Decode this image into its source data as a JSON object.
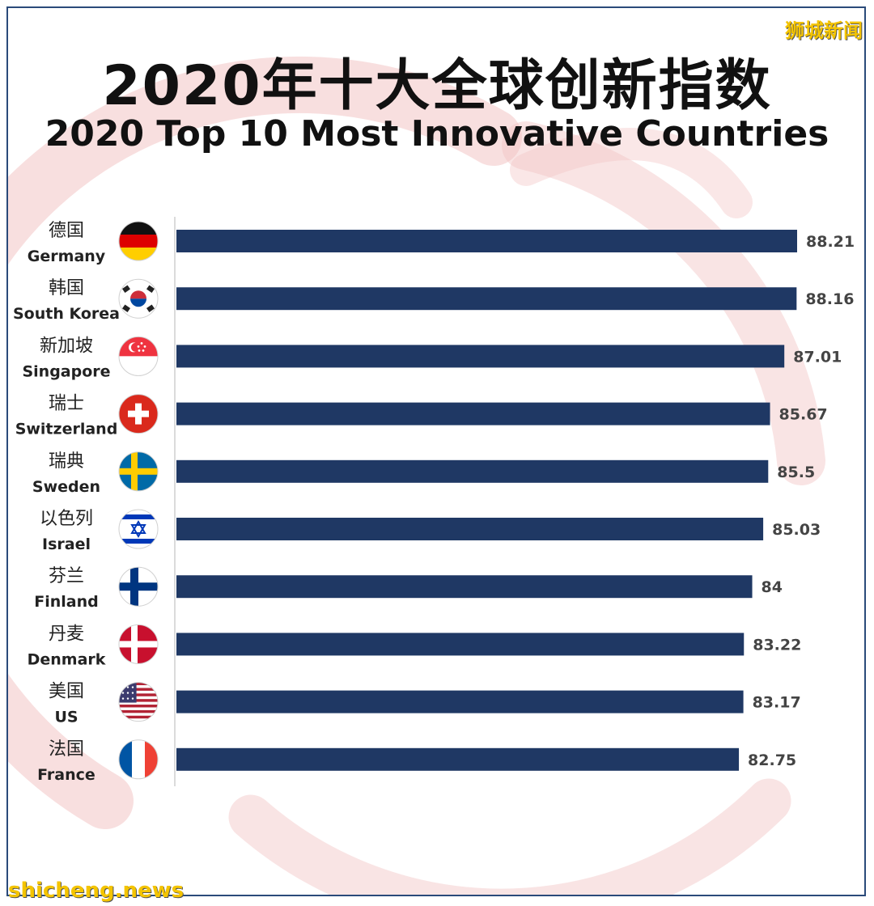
{
  "title_cn": "2020年十大全球创新指数",
  "title_en": "2020 Top 10 Most Innovative Countries",
  "watermark_top": "狮城新闻",
  "watermark_bottom": "shicheng.news",
  "colors": {
    "bar": "#1f3864",
    "logo": "#f2c4c4",
    "frame": "#2a4a7a",
    "watermark": "#f4c400"
  },
  "chart_data": {
    "type": "bar",
    "orientation": "horizontal",
    "title": "2020 Top 10 Most Innovative Countries",
    "categories": [
      {
        "cn": "德国",
        "en": "Germany",
        "flag": "germany-flag"
      },
      {
        "cn": "韩国",
        "en": "South Korea",
        "flag": "south-korea-flag"
      },
      {
        "cn": "新加坡",
        "en": "Singapore",
        "flag": "singapore-flag"
      },
      {
        "cn": "瑞士",
        "en": "Switzerland",
        "flag": "switzerland-flag"
      },
      {
        "cn": "瑞典",
        "en": "Sweden",
        "flag": "sweden-flag"
      },
      {
        "cn": "以色列",
        "en": "Israel",
        "flag": "israel-flag"
      },
      {
        "cn": "芬兰",
        "en": "Finland",
        "flag": "finland-flag"
      },
      {
        "cn": "丹麦",
        "en": "Denmark",
        "flag": "denmark-flag"
      },
      {
        "cn": "美国",
        "en": "US",
        "flag": "us-flag"
      },
      {
        "cn": "法国",
        "en": "France",
        "flag": "france-flag"
      }
    ],
    "values": [
      88.21,
      88.16,
      87.01,
      85.67,
      85.5,
      85.03,
      84,
      83.22,
      83.17,
      82.75
    ],
    "value_labels": [
      "88.21",
      "88.16",
      "87.01",
      "85.67",
      "85.5",
      "85.03",
      "84",
      "83.22",
      "83.17",
      "82.75"
    ],
    "xlim": [
      30,
      88.21
    ],
    "grid": false,
    "legend": "none"
  }
}
